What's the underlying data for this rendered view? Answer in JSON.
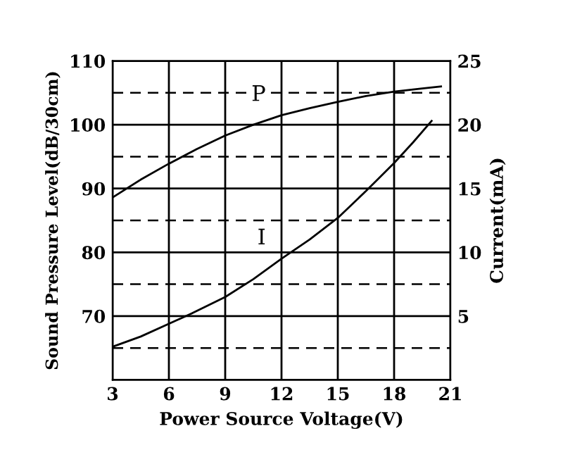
{
  "chart_data": {
    "type": "line",
    "xlabel": "Power Source Voltage(V)",
    "ylabel": "Sound Pressure Level(dB/30cm)",
    "y2label": "Current(mA)",
    "xlim": [
      3,
      21
    ],
    "xticks": [
      3,
      6,
      9,
      12,
      15,
      18,
      21
    ],
    "ylim": [
      60,
      110
    ],
    "yticks": [
      70,
      80,
      90,
      100,
      110
    ],
    "y2lim": [
      0,
      25
    ],
    "y2ticks": [
      5,
      10,
      15,
      20,
      25
    ],
    "grid": true,
    "marker": "none",
    "line_style": "solid",
    "series": [
      {
        "name": "P",
        "color": "#000000",
        "x": [
          3,
          4.5,
          6,
          7.5,
          9,
          10.5,
          12,
          13.5,
          15,
          16.5,
          18,
          19.5,
          20.5
        ],
        "values": [
          88.6,
          91.4,
          93.9,
          96.2,
          98.3,
          100.0,
          101.5,
          102.6,
          103.6,
          104.5,
          105.2,
          105.7,
          106.0
        ]
      },
      {
        "name": "I",
        "color": "#000000",
        "axis": "y2",
        "x": [
          3,
          4.5,
          6,
          7.2,
          9,
          10.5,
          12,
          13.5,
          15,
          16.5,
          18,
          19,
          20
        ],
        "values": [
          2.6,
          3.4,
          4.4,
          5.2,
          6.5,
          7.9,
          9.5,
          11.0,
          12.7,
          14.8,
          17.0,
          18.6,
          20.3
        ]
      }
    ],
    "ref_lines": [
      {
        "axis": "y",
        "value": 65,
        "line_style": "dashed",
        "color": "#000000"
      },
      {
        "axis": "y",
        "value": 75,
        "line_style": "dashed",
        "color": "#000000"
      },
      {
        "axis": "y",
        "value": 85,
        "line_style": "dashed",
        "color": "#000000"
      },
      {
        "axis": "y",
        "value": 95,
        "line_style": "dashed",
        "color": "#000000"
      },
      {
        "axis": "y",
        "value": 105,
        "line_style": "dashed",
        "color": "#000000"
      }
    ]
  }
}
